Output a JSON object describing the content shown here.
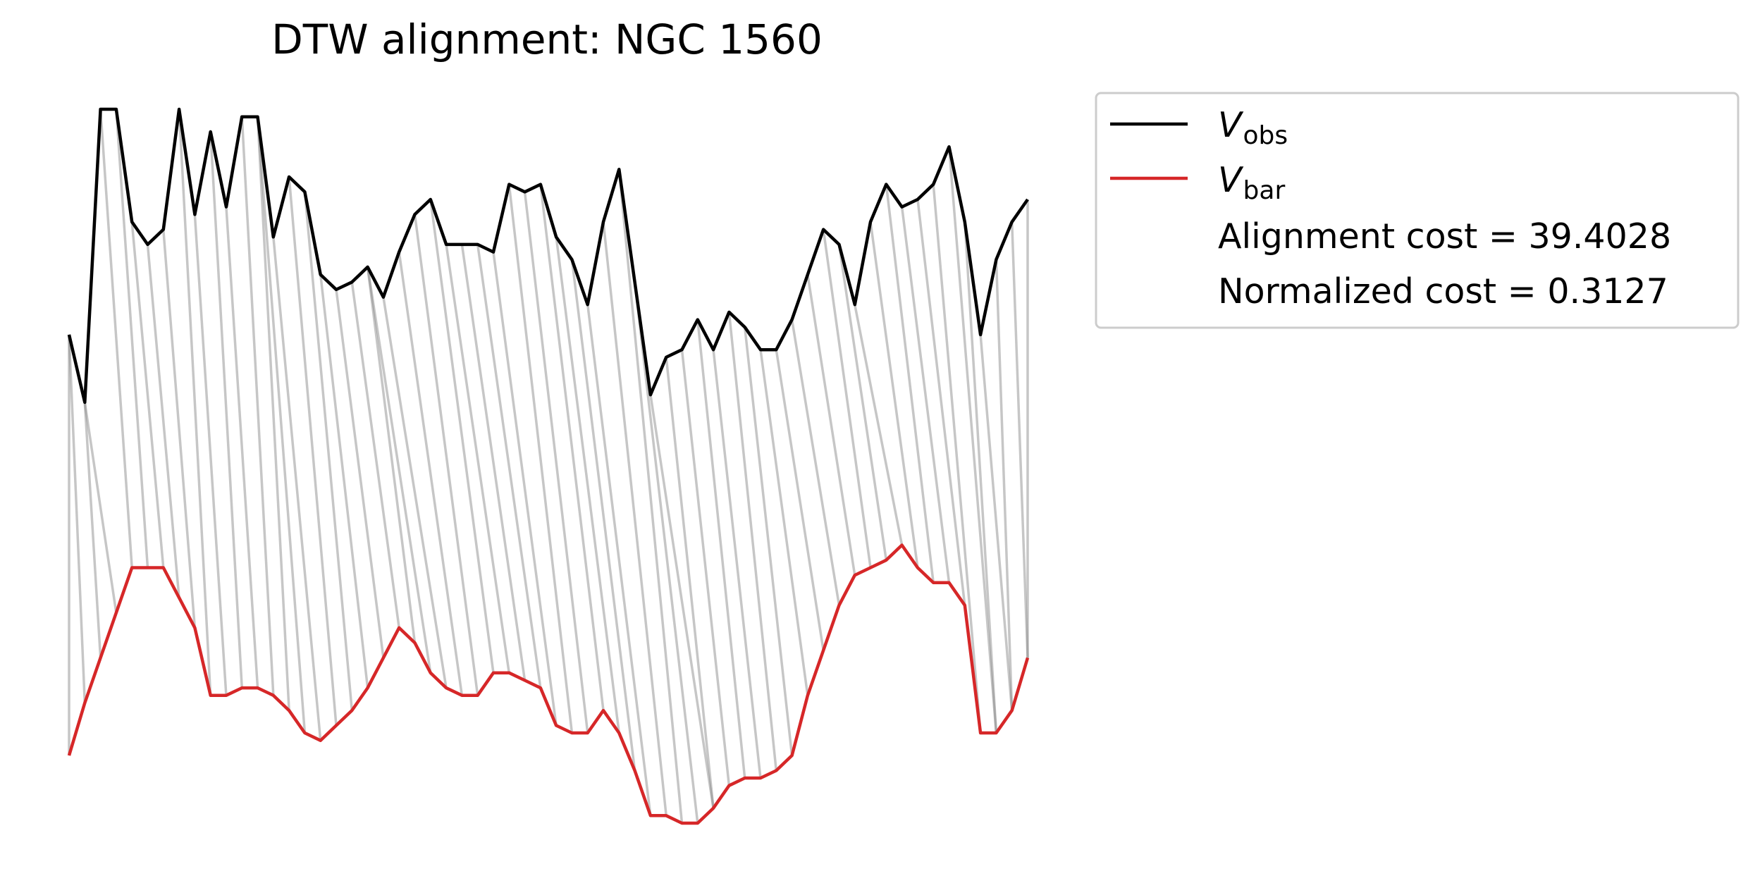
{
  "chart_data": {
    "type": "line",
    "title": "DTW alignment: NGC 1560",
    "xlabel": "",
    "ylabel": "",
    "axes_visible": false,
    "grid": false,
    "legend_position": "upper-right-outside",
    "series": [
      {
        "name": "V_obs",
        "label_main": "V",
        "label_sub": "obs",
        "color": "#000000",
        "values": [
          0.6,
          0.51,
          0.9,
          0.9,
          0.75,
          0.72,
          0.74,
          0.9,
          0.76,
          0.87,
          0.77,
          0.89,
          0.89,
          0.73,
          0.81,
          0.79,
          0.68,
          0.66,
          0.67,
          0.69,
          0.65,
          0.71,
          0.76,
          0.78,
          0.72,
          0.72,
          0.72,
          0.71,
          0.8,
          0.79,
          0.8,
          0.73,
          0.7,
          0.64,
          0.75,
          0.82,
          0.67,
          0.52,
          0.57,
          0.58,
          0.62,
          0.58,
          0.63,
          0.61,
          0.58,
          0.58,
          0.62,
          0.68,
          0.74,
          0.72,
          0.64,
          0.75,
          0.8,
          0.77,
          0.78,
          0.8,
          0.85,
          0.75,
          0.6,
          0.7,
          0.75,
          0.78
        ]
      },
      {
        "name": "V_bar",
        "label_main": "V",
        "label_sub": "bar",
        "color": "#d62728",
        "values": [
          0.04,
          0.11,
          0.17,
          0.23,
          0.29,
          0.29,
          0.29,
          0.25,
          0.21,
          0.12,
          0.12,
          0.13,
          0.13,
          0.12,
          0.1,
          0.07,
          0.06,
          0.08,
          0.1,
          0.13,
          0.17,
          0.21,
          0.19,
          0.15,
          0.13,
          0.12,
          0.12,
          0.15,
          0.15,
          0.14,
          0.13,
          0.08,
          0.07,
          0.07,
          0.1,
          0.07,
          0.02,
          -0.04,
          -0.04,
          -0.05,
          -0.05,
          -0.03,
          0.0,
          0.01,
          0.01,
          0.02,
          0.04,
          0.12,
          0.18,
          0.24,
          0.28,
          0.29,
          0.3,
          0.32,
          0.29,
          0.27,
          0.27,
          0.24,
          0.07,
          0.07,
          0.1,
          0.17
        ]
      }
    ],
    "alignment_pairs": [
      [
        0,
        0
      ],
      [
        0,
        1
      ],
      [
        1,
        2
      ],
      [
        1,
        3
      ],
      [
        2,
        4
      ],
      [
        3,
        5
      ],
      [
        4,
        6
      ],
      [
        5,
        7
      ],
      [
        6,
        8
      ],
      [
        7,
        9
      ],
      [
        8,
        10
      ],
      [
        9,
        11
      ],
      [
        10,
        12
      ],
      [
        11,
        13
      ],
      [
        12,
        14
      ],
      [
        12,
        15
      ],
      [
        13,
        16
      ],
      [
        14,
        17
      ],
      [
        15,
        18
      ],
      [
        16,
        19
      ],
      [
        17,
        20
      ],
      [
        18,
        21
      ],
      [
        19,
        22
      ],
      [
        19,
        23
      ],
      [
        20,
        24
      ],
      [
        21,
        25
      ],
      [
        22,
        26
      ],
      [
        23,
        27
      ],
      [
        24,
        28
      ],
      [
        25,
        29
      ],
      [
        26,
        30
      ],
      [
        27,
        31
      ],
      [
        28,
        32
      ],
      [
        29,
        33
      ],
      [
        30,
        34
      ],
      [
        31,
        35
      ],
      [
        32,
        36
      ],
      [
        33,
        37
      ],
      [
        34,
        38
      ],
      [
        35,
        39
      ],
      [
        36,
        40
      ],
      [
        37,
        41
      ],
      [
        38,
        41
      ],
      [
        39,
        42
      ],
      [
        40,
        43
      ],
      [
        41,
        44
      ],
      [
        42,
        45
      ],
      [
        43,
        46
      ],
      [
        44,
        47
      ],
      [
        45,
        48
      ],
      [
        46,
        49
      ],
      [
        47,
        50
      ],
      [
        48,
        51
      ],
      [
        49,
        52
      ],
      [
        50,
        53
      ],
      [
        51,
        54
      ],
      [
        52,
        55
      ],
      [
        53,
        56
      ],
      [
        54,
        57
      ],
      [
        55,
        58
      ],
      [
        56,
        59
      ],
      [
        57,
        59
      ],
      [
        58,
        60
      ],
      [
        59,
        60
      ],
      [
        60,
        61
      ],
      [
        61,
        61
      ]
    ],
    "legend_text_lines": [
      "Alignment cost = 39.4028",
      "Normalized cost = 0.3127"
    ]
  }
}
